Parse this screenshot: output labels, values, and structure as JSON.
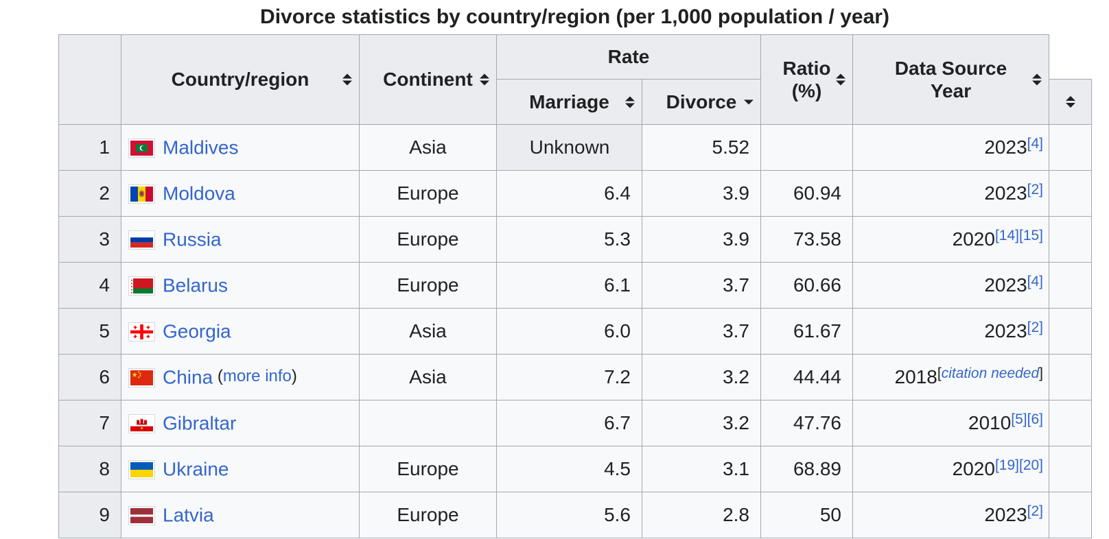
{
  "title": "Divorce statistics by country/region (per 1,000 population / year)",
  "colors": {
    "link_blue": "#3366cc",
    "header_bg": "#eaecf0",
    "row_bg": "#f8f9fa",
    "border": "#a2a9b1"
  },
  "table": {
    "header": {
      "rank": "",
      "country": "Country/region",
      "continent": "Continent",
      "rate": "Rate",
      "marriage": "Marriage",
      "divorce": "Divorce",
      "ratio_line1": "Ratio",
      "ratio_line2": "(%)",
      "source_line1": "Data Source",
      "source_line2": "Year",
      "refs": ""
    },
    "sort_state": {
      "divorce": "descending",
      "others": "sortable-both"
    },
    "rows": [
      {
        "rank": "1",
        "country": "Maldives",
        "flag": "maldives",
        "continent": "Asia",
        "marriage": "Unknown",
        "marriage_unknown": true,
        "divorce": "5.52",
        "ratio": "",
        "year": "2023",
        "refs": [
          "[4]"
        ]
      },
      {
        "rank": "2",
        "country": "Moldova",
        "flag": "moldova",
        "continent": "Europe",
        "marriage": "6.4",
        "divorce": "3.9",
        "ratio": "60.94",
        "year": "2023",
        "refs": [
          "[2]"
        ]
      },
      {
        "rank": "3",
        "country": "Russia",
        "flag": "russia",
        "continent": "Europe",
        "marriage": "5.3",
        "divorce": "3.9",
        "ratio": "73.58",
        "year": "2020",
        "refs": [
          "[14]",
          "[15]"
        ]
      },
      {
        "rank": "4",
        "country": "Belarus",
        "flag": "belarus",
        "continent": "Europe",
        "marriage": "6.1",
        "divorce": "3.7",
        "ratio": "60.66",
        "year": "2023",
        "refs": [
          "[4]"
        ]
      },
      {
        "rank": "5",
        "country": "Georgia",
        "flag": "georgia",
        "continent": "Asia",
        "marriage": "6.0",
        "divorce": "3.7",
        "ratio": "61.67",
        "year": "2023",
        "refs": [
          "[2]"
        ]
      },
      {
        "rank": "6",
        "country": "China",
        "flag": "china",
        "country_note": {
          "open": "(",
          "link": "more info",
          "close": ")"
        },
        "continent": "Asia",
        "marriage": "7.2",
        "divorce": "3.2",
        "ratio": "44.44",
        "year": "2018",
        "year_note": {
          "open": "[",
          "link": "citation needed",
          "close": "]"
        }
      },
      {
        "rank": "7",
        "country": "Gibraltar",
        "flag": "gibraltar",
        "continent": "",
        "marriage": "6.7",
        "divorce": "3.2",
        "ratio": "47.76",
        "year": "2010",
        "refs": [
          "[5]",
          "[6]"
        ]
      },
      {
        "rank": "8",
        "country": "Ukraine",
        "flag": "ukraine",
        "continent": "Europe",
        "marriage": "4.5",
        "divorce": "3.1",
        "ratio": "68.89",
        "year": "2020",
        "refs": [
          "[19]",
          "[20]"
        ]
      },
      {
        "rank": "9",
        "country": "Latvia",
        "flag": "latvia",
        "continent": "Europe",
        "marriage": "5.6",
        "divorce": "2.8",
        "ratio": "50",
        "year": "2023",
        "refs": [
          "[2]"
        ]
      }
    ]
  }
}
